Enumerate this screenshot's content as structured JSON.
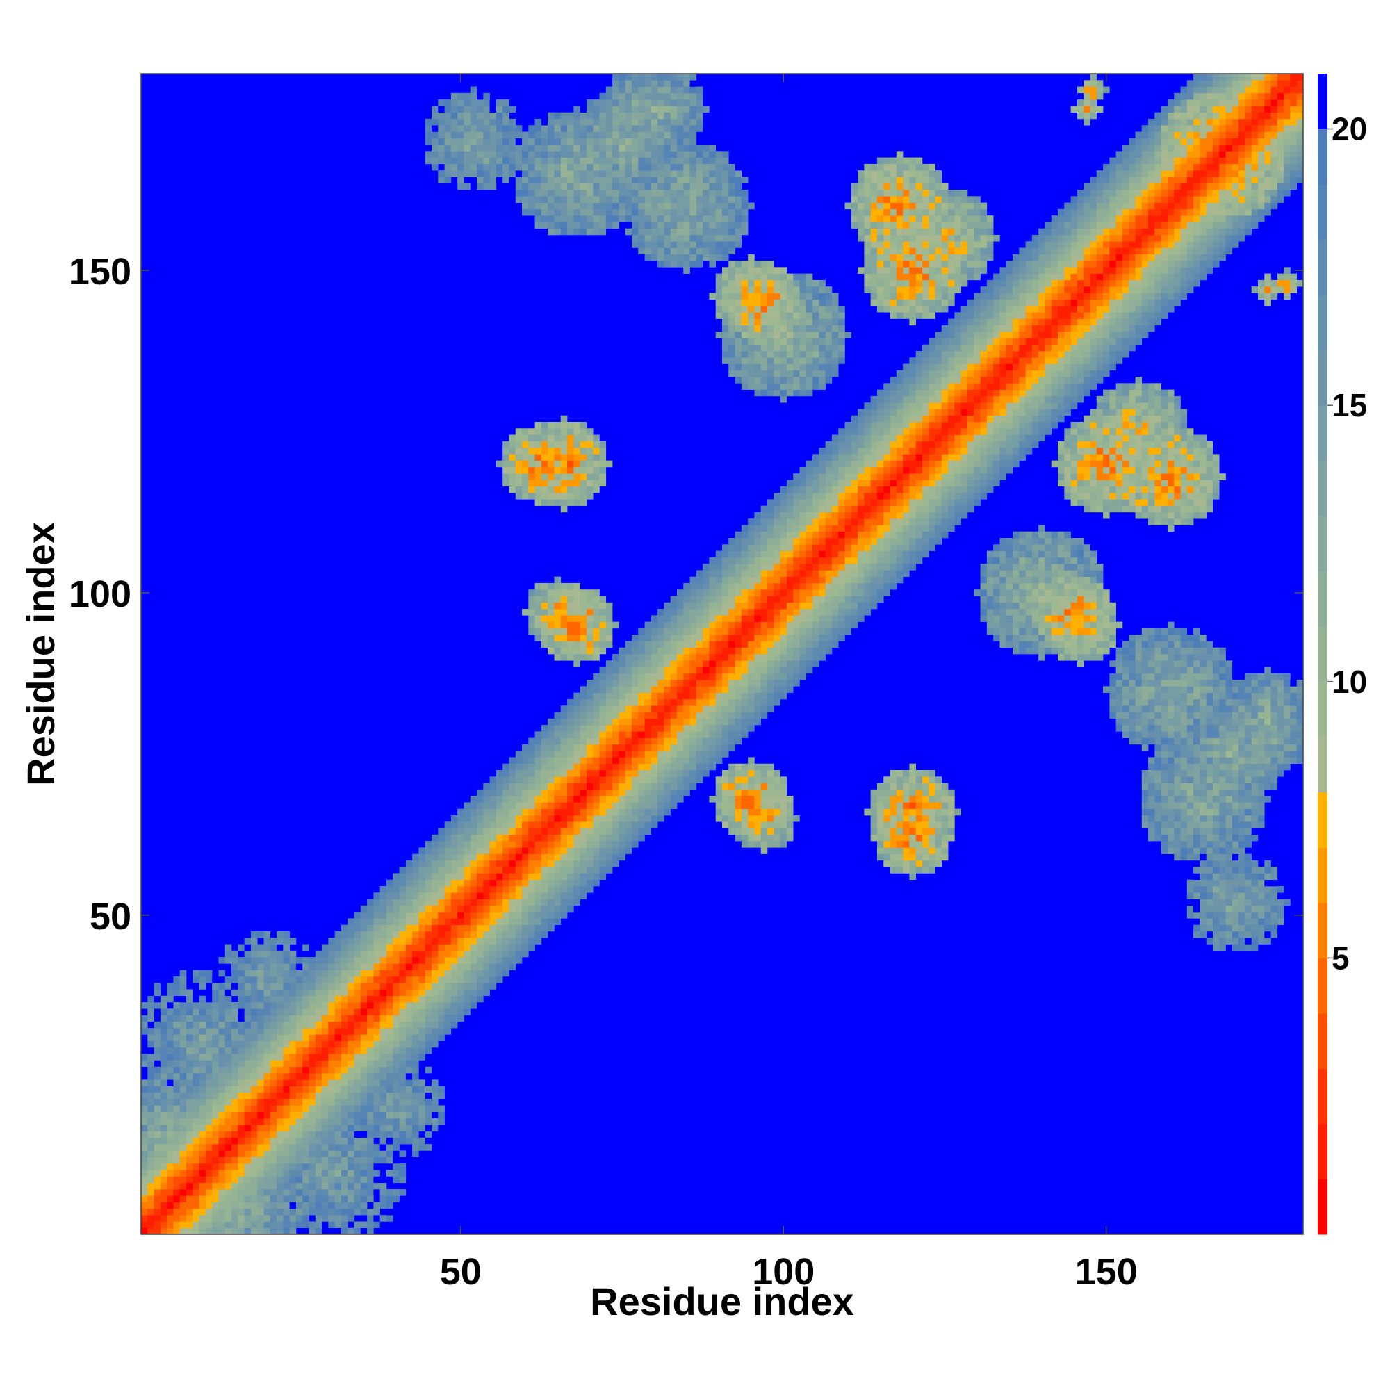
{
  "chart_data": {
    "type": "heatmap",
    "title": "",
    "xlabel": "Residue index",
    "ylabel": "Residue index",
    "n_residues": 180,
    "xlim": [
      1,
      180
    ],
    "ylim": [
      1,
      180
    ],
    "x_ticks": [
      50,
      100,
      150
    ],
    "y_ticks": [
      50,
      100,
      150
    ],
    "x_tick_labels": [
      "50",
      "100",
      "150"
    ],
    "y_tick_labels": [
      "50",
      "100",
      "150"
    ],
    "colorbar": {
      "range": [
        0,
        21
      ],
      "ticks": [
        5,
        10,
        15,
        20
      ],
      "tick_labels": [
        "5",
        "10",
        "15",
        "20"
      ],
      "levels": [
        {
          "max": 1,
          "color": "#ff0000"
        },
        {
          "max": 2,
          "color": "#ff1e00"
        },
        {
          "max": 3,
          "color": "#ff3300"
        },
        {
          "max": 4,
          "color": "#ff4d00"
        },
        {
          "max": 5,
          "color": "#ff6600"
        },
        {
          "max": 6,
          "color": "#ff8000"
        },
        {
          "max": 7,
          "color": "#ff9900"
        },
        {
          "max": 8,
          "color": "#ffb000"
        },
        {
          "max": 9,
          "color": "#a8b890"
        },
        {
          "max": 10,
          "color": "#9eb892"
        },
        {
          "max": 11,
          "color": "#96b494"
        },
        {
          "max": 12,
          "color": "#8eae98"
        },
        {
          "max": 13,
          "color": "#86a89c"
        },
        {
          "max": 14,
          "color": "#7ea2a0"
        },
        {
          "max": 15,
          "color": "#769ca4"
        },
        {
          "max": 16,
          "color": "#6e96a8"
        },
        {
          "max": 17,
          "color": "#6690ac"
        },
        {
          "max": 18,
          "color": "#5e8ab0"
        },
        {
          "max": 19,
          "color": "#5684b4"
        },
        {
          "max": 20,
          "color": "#4e7eb8"
        },
        {
          "max": 21,
          "color": "#0000ff"
        }
      ]
    },
    "background_color": "#0000ff",
    "diagonal_band_width": 4,
    "contact_clusters": [
      {
        "i": 5,
        "j": 15,
        "value": 12,
        "spread": 10
      },
      {
        "i": 10,
        "j": 30,
        "value": 14,
        "spread": 12
      },
      {
        "i": 20,
        "j": 40,
        "value": 14,
        "spread": 8
      },
      {
        "i": 52,
        "j": 170,
        "value": 13,
        "spread": 8
      },
      {
        "i": 62,
        "j": 120,
        "value": 6,
        "spread": 6
      },
      {
        "i": 65,
        "j": 97,
        "value": 7,
        "spread": 5
      },
      {
        "i": 68,
        "j": 165,
        "value": 12,
        "spread": 10
      },
      {
        "i": 80,
        "j": 175,
        "value": 12,
        "spread": 8
      },
      {
        "i": 95,
        "j": 68,
        "value": 6,
        "spread": 6
      },
      {
        "i": 95,
        "j": 146,
        "value": 7,
        "spread": 6
      },
      {
        "i": 100,
        "j": 140,
        "value": 11,
        "spread": 10
      },
      {
        "i": 118,
        "j": 160,
        "value": 6,
        "spread": 8
      },
      {
        "i": 120,
        "j": 66,
        "value": 6,
        "spread": 7
      },
      {
        "i": 125,
        "j": 155,
        "value": 8,
        "spread": 8
      },
      {
        "i": 145,
        "j": 97,
        "value": 6,
        "spread": 6
      },
      {
        "i": 150,
        "j": 120,
        "value": 6,
        "spread": 8
      },
      {
        "i": 160,
        "j": 85,
        "value": 12,
        "spread": 10
      },
      {
        "i": 170,
        "j": 75,
        "value": 12,
        "spread": 8
      },
      {
        "i": 168,
        "j": 168,
        "value": 6,
        "spread": 10
      },
      {
        "i": 175,
        "j": 147,
        "value": 6,
        "spread": 2
      },
      {
        "i": 148,
        "j": 178,
        "value": 6,
        "spread": 2
      }
    ]
  }
}
